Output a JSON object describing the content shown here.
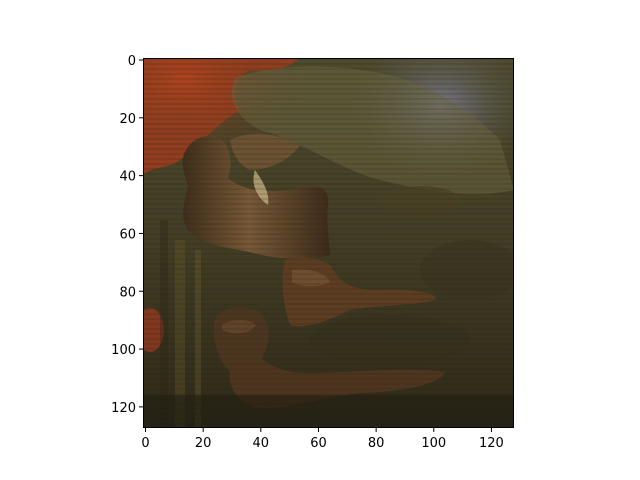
{
  "image": {
    "description_colors": {
      "dark_olive": "#3f3a22",
      "olive": "#5a5230",
      "brown": "#6b4a2c",
      "rust": "#a8401e",
      "slate_blue": "#6f6f80",
      "shadow": "#221d12",
      "highlight": "#b9a77a"
    }
  },
  "chart_data": {
    "type": "image",
    "x_range": [
      0,
      127
    ],
    "y_range": [
      0,
      127
    ],
    "y_inverted": true,
    "x_ticks": [
      "0",
      "20",
      "40",
      "60",
      "80",
      "100",
      "120"
    ],
    "y_ticks": [
      "0",
      "20",
      "40",
      "60",
      "80",
      "100",
      "120"
    ],
    "x_tick_values": [
      0,
      20,
      40,
      60,
      80,
      100,
      120
    ],
    "y_tick_values": [
      0,
      20,
      40,
      60,
      80,
      100,
      120
    ]
  }
}
